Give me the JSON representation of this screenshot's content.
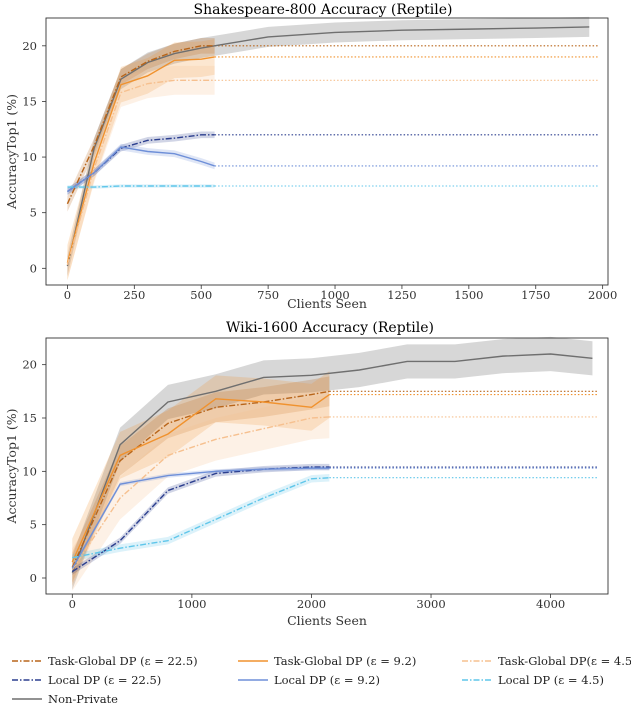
{
  "chart_data": [
    {
      "type": "line",
      "title": "Shakespeare-800 Accuracy (Reptile)",
      "xlabel": "Clients Seen",
      "ylabel": "AccuracyTop1 (%)",
      "xlim": [
        -80,
        2020
      ],
      "ylim": [
        -1.5,
        22.5
      ],
      "xticks": [
        "0",
        "250",
        "500",
        "750",
        "1000",
        "1250",
        "1500",
        "1750",
        "2000"
      ],
      "yticks": [
        "0",
        "5",
        "10",
        "15",
        "20"
      ],
      "grid": false,
      "series": [
        {
          "name": "Non-Private",
          "x": [
            0,
            100,
            200,
            300,
            400,
            500,
            600,
            750,
            1000,
            1250,
            1500,
            1750,
            1950
          ],
          "y": [
            0.2,
            10.8,
            17.0,
            18.5,
            19.3,
            19.8,
            20.2,
            20.8,
            21.2,
            21.4,
            21.5,
            21.6,
            21.7
          ],
          "band": 0.9
        },
        {
          "name": "Task-Global DP (ε = 22.5)",
          "x": [
            0,
            100,
            200,
            300,
            400,
            500,
            550
          ],
          "y": [
            5.8,
            11.0,
            17.2,
            18.6,
            19.5,
            20.0,
            20.0
          ],
          "band": 0.7,
          "ref": 20.0
        },
        {
          "name": "Task-Global DP  (ε = 9.2)",
          "x": [
            0,
            100,
            200,
            300,
            400,
            500,
            550
          ],
          "y": [
            0.5,
            9.5,
            16.5,
            17.3,
            18.7,
            18.8,
            19.0
          ],
          "band": 1.6,
          "ref": 19.0
        },
        {
          "name": "Task-Global DP(ε = 4.5)",
          "x": [
            0,
            100,
            200,
            300,
            400,
            500,
            550
          ],
          "y": [
            0.3,
            9.0,
            15.8,
            16.6,
            16.9,
            16.9,
            16.9
          ],
          "band": 1.3,
          "ref": 16.9
        },
        {
          "name": "Local DP (ε = 22.5)",
          "x": [
            0,
            100,
            200,
            300,
            400,
            500,
            550
          ],
          "y": [
            6.9,
            8.6,
            10.8,
            11.5,
            11.7,
            12.0,
            12.0
          ],
          "band": 0.3,
          "ref": 12.0
        },
        {
          "name": "Local DP (ε = 9.2)",
          "x": [
            0,
            100,
            200,
            300,
            400,
            500,
            550
          ],
          "y": [
            6.9,
            8.6,
            10.9,
            10.5,
            10.3,
            9.6,
            9.2
          ],
          "band": 0.3,
          "ref": 9.2
        },
        {
          "name": "Local DP (ε = 4.5)",
          "x": [
            0,
            100,
            200,
            300,
            400,
            500,
            550
          ],
          "y": [
            7.3,
            7.3,
            7.4,
            7.4,
            7.4,
            7.4,
            7.4
          ],
          "band": 0.15,
          "ref": 7.4
        }
      ]
    },
    {
      "type": "line",
      "title": "Wiki-1600 Accuracy (Reptile)",
      "xlabel": "Clients Seen",
      "ylabel": "AccuracyTop1 (%)",
      "xlim": [
        -220,
        4480
      ],
      "ylim": [
        -1.5,
        22.5
      ],
      "xticks": [
        "0",
        "1000",
        "2000",
        "3000",
        "4000"
      ],
      "yticks": [
        "0",
        "5",
        "10",
        "15",
        "20"
      ],
      "grid": false,
      "series": [
        {
          "name": "Non-Private",
          "x": [
            0,
            400,
            800,
            1200,
            1600,
            2000,
            2400,
            2800,
            3200,
            3600,
            4000,
            4350
          ],
          "y": [
            0.5,
            12.5,
            16.5,
            17.5,
            18.8,
            19.0,
            19.5,
            20.3,
            20.3,
            20.8,
            21.0,
            20.6
          ],
          "band": 1.6
        },
        {
          "name": "Task-Global DP (ε = 22.5)",
          "x": [
            0,
            400,
            800,
            1200,
            1600,
            2000,
            2150
          ],
          "y": [
            1.0,
            11.0,
            14.5,
            16.0,
            16.5,
            17.2,
            17.5
          ],
          "band": 1.4,
          "ref": 17.5
        },
        {
          "name": "Task-Global DP  (ε = 9.2)",
          "x": [
            0,
            400,
            800,
            1200,
            1600,
            2000,
            2150
          ],
          "y": [
            1.5,
            11.5,
            13.5,
            16.8,
            16.5,
            16.0,
            17.2
          ],
          "band": 2.2,
          "ref": 17.2
        },
        {
          "name": "Task-Global DP(ε = 4.5)",
          "x": [
            0,
            400,
            800,
            1200,
            1600,
            2000,
            2150
          ],
          "y": [
            0.8,
            7.5,
            11.5,
            13.0,
            14.0,
            15.0,
            15.1
          ],
          "band": 2.0,
          "ref": 15.1
        },
        {
          "name": "Local DP (ε = 22.5)",
          "x": [
            0,
            400,
            800,
            1200,
            1600,
            2000,
            2150
          ],
          "y": [
            0.6,
            3.5,
            8.2,
            9.8,
            10.2,
            10.4,
            10.4
          ],
          "band": 0.3,
          "ref": 10.4
        },
        {
          "name": "Local DP (ε = 9.2)",
          "x": [
            0,
            400,
            800,
            1200,
            1600,
            2000,
            2150
          ],
          "y": [
            0.9,
            8.8,
            9.6,
            10.0,
            10.2,
            10.3,
            10.3
          ],
          "band": 0.2,
          "ref": 10.3
        },
        {
          "name": "Local DP (ε = 4.5)",
          "x": [
            0,
            400,
            800,
            1200,
            1600,
            2000,
            2150
          ],
          "y": [
            1.9,
            2.8,
            3.5,
            5.5,
            7.5,
            9.3,
            9.4
          ],
          "band": 0.35,
          "ref": 9.4
        }
      ]
    }
  ],
  "legend": [
    {
      "label": "Task-Global DP (ε = 22.5)",
      "color": "#b8651a",
      "dash": "dashdot"
    },
    {
      "label": "Task-Global DP  (ε = 9.2)",
      "color": "#f0922e",
      "dash": "solid"
    },
    {
      "label": "Task-Global DP(ε = 4.5)",
      "color": "#f6c08f",
      "dash": "dashdot"
    },
    {
      "label": "Local DP (ε = 22.5)",
      "color": "#2c3f8f",
      "dash": "dashdot"
    },
    {
      "label": "Local DP (ε = 9.2)",
      "color": "#6e8fd8",
      "dash": "solid"
    },
    {
      "label": "Local DP (ε = 4.5)",
      "color": "#5fc6ea",
      "dash": "dashdot"
    },
    {
      "label": "Non-Private",
      "color": "#6f6f6f",
      "dash": "solid"
    }
  ]
}
